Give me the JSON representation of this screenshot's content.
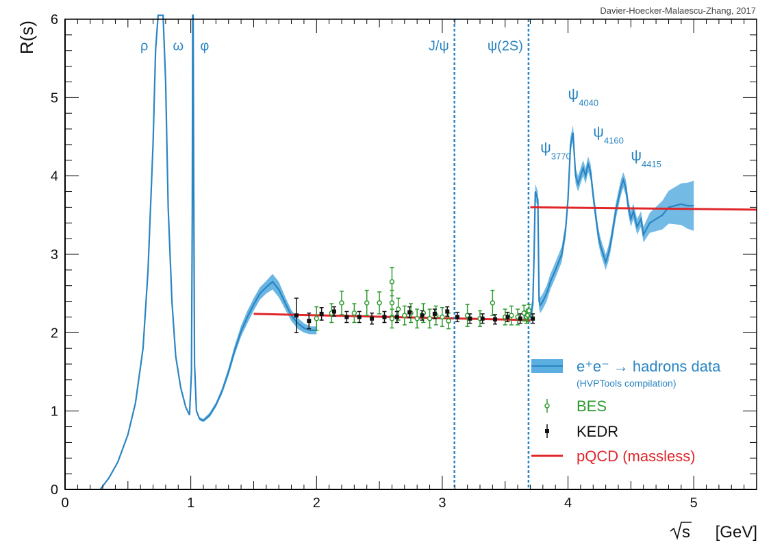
{
  "chart_data": {
    "type": "line",
    "credit": "Davier-Hoecker-Malaescu-Zhang, 2017",
    "xlabel_root": "s",
    "xlabel_unit": "[GeV]",
    "ylabel": "R(s)",
    "xlim": [
      0,
      5.5
    ],
    "ylim": [
      0,
      6
    ],
    "xticks": [
      "0",
      "1",
      "2",
      "3",
      "4",
      "5"
    ],
    "yticks": [
      "0",
      "1",
      "2",
      "3",
      "4",
      "5",
      "6"
    ],
    "colors": {
      "band": "#5aaee0",
      "line": "#2a85c2",
      "bes": "#2e9a2e",
      "kedr": "#111111",
      "pqcd": "#e0262b",
      "resonance": "#2a85c2",
      "frame": "#000000"
    },
    "resonance_labels": [
      {
        "text": "ρ",
        "x": 0.63,
        "y": 5.6
      },
      {
        "text": "ω",
        "x": 0.9,
        "y": 5.6
      },
      {
        "text": "φ",
        "x": 1.11,
        "y": 5.6
      }
    ],
    "vertical_lines": [
      {
        "label": "J/ψ",
        "x": 3.097
      },
      {
        "label": "ψ(2S)",
        "x": 3.686
      }
    ],
    "charmonium_labels": [
      {
        "psi": "ψ",
        "sub": "3770",
        "x": 3.78,
        "y": 4.3
      },
      {
        "psi": "ψ",
        "sub": "4040",
        "x": 4.0,
        "y": 4.98
      },
      {
        "psi": "ψ",
        "sub": "4160",
        "x": 4.2,
        "y": 4.5
      },
      {
        "psi": "ψ",
        "sub": "4415",
        "x": 4.5,
        "y": 4.2
      }
    ],
    "series": [
      {
        "name": "e⁺e⁻ → hadrons data",
        "kind": "band",
        "low": {
          "x": [
            0.28,
            0.35,
            0.42,
            0.5,
            0.56,
            0.62,
            0.66,
            0.7,
            0.72,
            0.74,
            0.76,
            0.78,
            0.8,
            0.82,
            0.85,
            0.88,
            0.92,
            0.96,
            0.99,
            1.005,
            1.012,
            1.015,
            1.019,
            1.023,
            1.03,
            1.045,
            1.07,
            1.1,
            1.15,
            1.2,
            1.25,
            1.3,
            1.35,
            1.4,
            1.45,
            1.5,
            1.55,
            1.6,
            1.65,
            1.7,
            1.75,
            1.8,
            1.85,
            1.9,
            1.95,
            2.0
          ],
          "y": [
            0,
            0.15,
            0.35,
            0.7,
            1.1,
            1.8,
            2.8,
            4.4,
            5.6,
            6.2,
            6.2,
            6.2,
            5.2,
            3.6,
            2.4,
            1.7,
            1.3,
            1.05,
            0.95,
            1.5,
            3.5,
            6.2,
            6.2,
            4.0,
            1.6,
            1.0,
            0.88,
            0.86,
            0.92,
            1.05,
            1.22,
            1.45,
            1.72,
            1.95,
            2.12,
            2.28,
            2.42,
            2.5,
            2.55,
            2.45,
            2.3,
            2.15,
            2.05,
            2.0,
            1.98,
            1.98
          ]
        },
        "mid": {
          "x": [
            0.28,
            0.35,
            0.42,
            0.5,
            0.56,
            0.62,
            0.66,
            0.7,
            0.72,
            0.74,
            0.76,
            0.78,
            0.8,
            0.82,
            0.85,
            0.88,
            0.92,
            0.96,
            0.99,
            1.005,
            1.012,
            1.015,
            1.019,
            1.023,
            1.03,
            1.045,
            1.07,
            1.1,
            1.15,
            1.2,
            1.25,
            1.3,
            1.35,
            1.4,
            1.45,
            1.5,
            1.55,
            1.6,
            1.65,
            1.7,
            1.75,
            1.8,
            1.85,
            1.9,
            1.95,
            2.0
          ],
          "y": [
            0,
            0.15,
            0.35,
            0.7,
            1.1,
            1.8,
            2.8,
            4.4,
            5.6,
            6.2,
            6.2,
            6.2,
            5.2,
            3.6,
            2.4,
            1.7,
            1.3,
            1.05,
            0.95,
            1.5,
            3.5,
            6.2,
            6.2,
            4.0,
            1.6,
            1.0,
            0.9,
            0.88,
            0.95,
            1.08,
            1.26,
            1.5,
            1.78,
            2.02,
            2.2,
            2.36,
            2.5,
            2.58,
            2.65,
            2.55,
            2.38,
            2.22,
            2.12,
            2.06,
            2.03,
            2.03
          ]
        },
        "high": {
          "x": [
            0.28,
            0.35,
            0.42,
            0.5,
            0.56,
            0.62,
            0.66,
            0.7,
            0.72,
            0.74,
            0.76,
            0.78,
            0.8,
            0.82,
            0.85,
            0.88,
            0.92,
            0.96,
            0.99,
            1.005,
            1.012,
            1.015,
            1.019,
            1.023,
            1.03,
            1.045,
            1.07,
            1.1,
            1.15,
            1.2,
            1.25,
            1.3,
            1.35,
            1.4,
            1.45,
            1.5,
            1.55,
            1.6,
            1.65,
            1.7,
            1.75,
            1.8,
            1.85,
            1.9,
            1.95,
            2.0
          ],
          "y": [
            0,
            0.15,
            0.35,
            0.7,
            1.1,
            1.8,
            2.8,
            4.4,
            5.6,
            6.2,
            6.2,
            6.2,
            5.2,
            3.6,
            2.4,
            1.7,
            1.3,
            1.05,
            0.95,
            1.5,
            3.5,
            6.2,
            6.2,
            4.0,
            1.6,
            1.0,
            0.92,
            0.9,
            0.98,
            1.11,
            1.3,
            1.55,
            1.84,
            2.09,
            2.28,
            2.44,
            2.58,
            2.66,
            2.75,
            2.65,
            2.46,
            2.29,
            2.19,
            2.12,
            2.08,
            2.08
          ]
        },
        "charm_mid": {
          "x": [
            3.7,
            3.72,
            3.73,
            3.74,
            3.76,
            3.77,
            3.78,
            3.8,
            3.83,
            3.86,
            3.9,
            3.95,
            3.98,
            4.0,
            4.02,
            4.04,
            4.06,
            4.08,
            4.1,
            4.12,
            4.14,
            4.16,
            4.18,
            4.2,
            4.22,
            4.24,
            4.26,
            4.28,
            4.3,
            4.32,
            4.34,
            4.36,
            4.38,
            4.4,
            4.42,
            4.44,
            4.46,
            4.48,
            4.5,
            4.52,
            4.55,
            4.58,
            4.6,
            4.65,
            4.7,
            4.75,
            4.8,
            4.85,
            4.9,
            4.95,
            5.0
          ],
          "y": [
            2.2,
            2.35,
            3.0,
            3.8,
            3.7,
            2.4,
            2.35,
            2.4,
            2.5,
            2.65,
            2.8,
            3.0,
            3.3,
            3.7,
            4.4,
            4.55,
            4.0,
            3.9,
            4.0,
            4.1,
            4.0,
            4.15,
            4.05,
            3.75,
            3.5,
            3.25,
            3.1,
            3.0,
            2.9,
            3.0,
            3.15,
            3.35,
            3.55,
            3.7,
            3.85,
            3.95,
            3.85,
            3.6,
            3.45,
            3.55,
            3.35,
            3.45,
            3.25,
            3.4,
            3.45,
            3.5,
            3.6,
            3.62,
            3.64,
            3.62,
            3.62
          ]
        }
      },
      {
        "name": "BES",
        "kind": "errorbar",
        "x": [
          2.0,
          2.12,
          2.2,
          2.3,
          2.4,
          2.5,
          2.6,
          2.6,
          2.6,
          2.65,
          2.7,
          2.75,
          2.8,
          2.85,
          2.9,
          2.95,
          3.0,
          3.05,
          3.2,
          3.3,
          3.4,
          3.5,
          3.55,
          3.6,
          3.65,
          3.67,
          3.68,
          3.69
        ],
        "y": [
          2.18,
          2.25,
          2.38,
          2.25,
          2.38,
          2.38,
          2.38,
          2.65,
          2.18,
          2.3,
          2.22,
          2.25,
          2.18,
          2.25,
          2.18,
          2.22,
          2.2,
          2.15,
          2.22,
          2.18,
          2.38,
          2.2,
          2.22,
          2.2,
          2.25,
          2.2,
          2.22,
          2.28
        ],
        "err": [
          0.15,
          0.12,
          0.15,
          0.12,
          0.16,
          0.14,
          0.16,
          0.18,
          0.12,
          0.14,
          0.12,
          0.12,
          0.12,
          0.12,
          0.12,
          0.12,
          0.12,
          0.1,
          0.14,
          0.1,
          0.16,
          0.1,
          0.12,
          0.1,
          0.1,
          0.08,
          0.08,
          0.08
        ]
      },
      {
        "name": "KEDR",
        "kind": "errorbar",
        "x": [
          1.84,
          1.94,
          2.04,
          2.14,
          2.24,
          2.34,
          2.44,
          2.54,
          2.64,
          2.74,
          2.84,
          2.94,
          3.04,
          3.12,
          3.22,
          3.32,
          3.42,
          3.52,
          3.62,
          3.72
        ],
        "y": [
          2.22,
          2.15,
          2.24,
          2.27,
          2.2,
          2.2,
          2.18,
          2.2,
          2.2,
          2.26,
          2.22,
          2.24,
          2.27,
          2.2,
          2.18,
          2.18,
          2.17,
          2.2,
          2.18,
          2.18
        ],
        "err": [
          0.22,
          0.1,
          0.08,
          0.06,
          0.07,
          0.07,
          0.07,
          0.07,
          0.07,
          0.07,
          0.06,
          0.06,
          0.06,
          0.06,
          0.06,
          0.06,
          0.06,
          0.06,
          0.06,
          0.06
        ]
      },
      {
        "name": "pQCD (massless)",
        "kind": "line",
        "segments": [
          {
            "x": [
              1.5,
              3.7
            ],
            "y": [
              2.24,
              2.16
            ]
          },
          {
            "x": [
              3.7,
              5.5
            ],
            "y": [
              3.6,
              3.57
            ]
          }
        ]
      }
    ],
    "legend": {
      "position": "bottom-right",
      "entries": [
        {
          "kind": "band",
          "label": "e⁺e⁻ → hadrons data",
          "sublabel": "(HVPTools compilation)"
        },
        {
          "kind": "bes",
          "label": "BES"
        },
        {
          "kind": "kedr",
          "label": "KEDR"
        },
        {
          "kind": "pqcd",
          "label": "pQCD (massless)"
        }
      ]
    }
  }
}
